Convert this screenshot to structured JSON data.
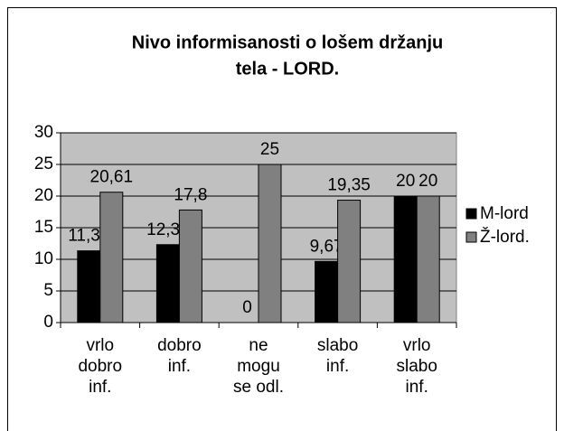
{
  "chart_data": {
    "type": "bar",
    "title": [
      "Nivo informisanosti o lošem držanju",
      "tela - LORD."
    ],
    "categories": [
      [
        "vrlo",
        "dobro",
        "inf."
      ],
      [
        "dobro",
        "inf."
      ],
      [
        "ne",
        "mogu",
        "se odl."
      ],
      [
        "slabo",
        "inf."
      ],
      [
        "vrlo",
        "slabo",
        "inf."
      ]
    ],
    "series": [
      {
        "name": "M-lord",
        "color": "#000000",
        "values": [
          11.34,
          12.32,
          0,
          9.67,
          20
        ],
        "value_labels": [
          "11,34",
          "12,32",
          "0",
          "9,67",
          "20"
        ]
      },
      {
        "name": "Ž-lord.",
        "color": "#808080",
        "values": [
          20.61,
          17.8,
          25,
          19.35,
          20
        ],
        "value_labels": [
          "20,61",
          "17,8",
          "25",
          "19,35",
          "20"
        ]
      }
    ],
    "ylim": [
      0,
      30
    ],
    "yticks": [
      0,
      5,
      10,
      15,
      20,
      25,
      30
    ],
    "grid": true,
    "legend": "right"
  }
}
